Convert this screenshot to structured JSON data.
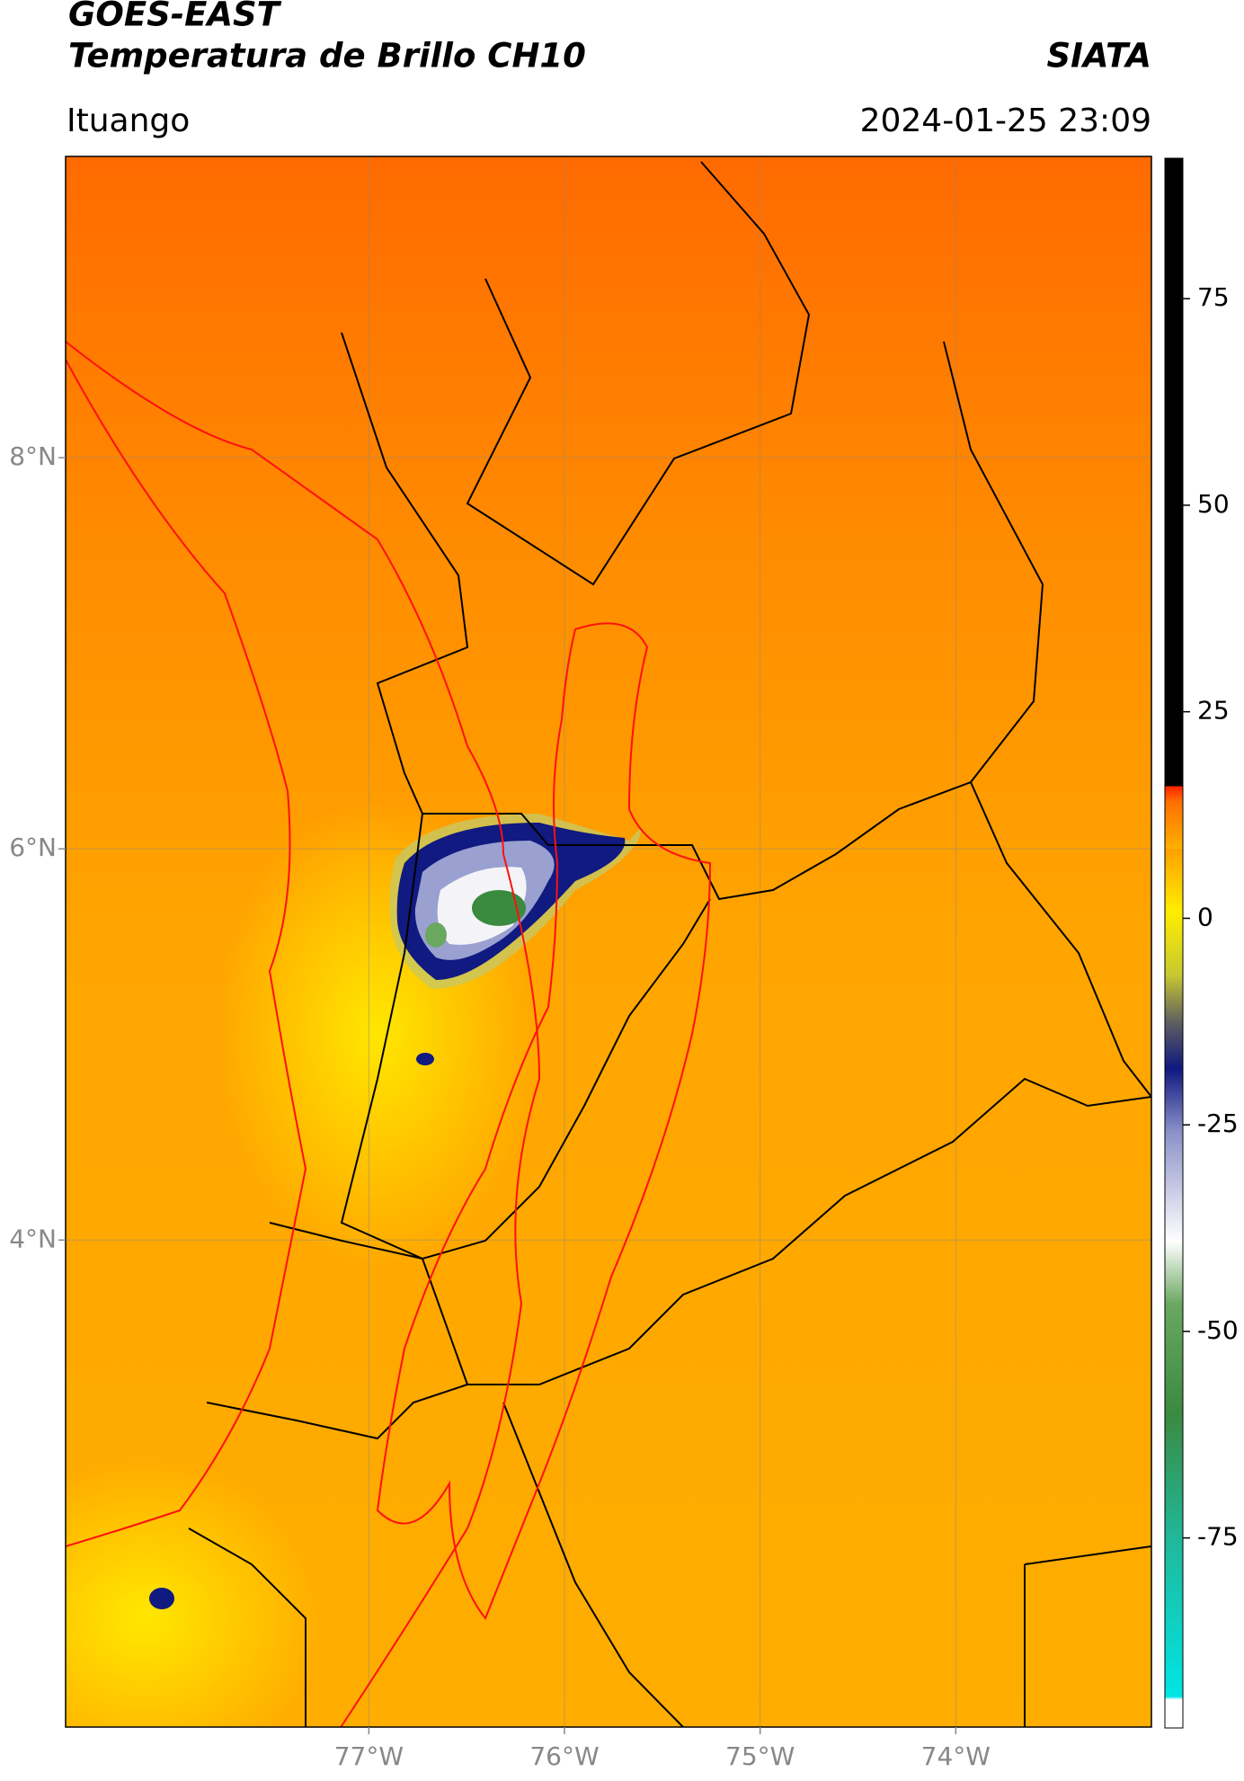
{
  "header": {
    "title": "GOES-EAST",
    "subtitle": "Temperatura de Brillo CH10",
    "brand": "SIATA",
    "location": "Ituango",
    "datetime": "2024-01-25 23:09"
  },
  "map": {
    "xlim": [
      -78.55,
      -73.0
    ],
    "ylim": [
      1.51,
      9.54
    ],
    "xticks": [
      {
        "value": -77,
        "label": "77°W"
      },
      {
        "value": -76,
        "label": "76°W"
      },
      {
        "value": -75,
        "label": "75°W"
      },
      {
        "value": -74,
        "label": "74°W"
      }
    ],
    "yticks": [
      {
        "value": 4,
        "label": "4°N"
      },
      {
        "value": 6,
        "label": "6°N"
      },
      {
        "value": 8,
        "label": "8°N"
      }
    ],
    "grid": true
  },
  "colorbar": {
    "lim": [
      -98,
      92
    ],
    "ticks": [
      -75,
      -50,
      -25,
      0,
      25,
      50,
      75
    ]
  }
}
